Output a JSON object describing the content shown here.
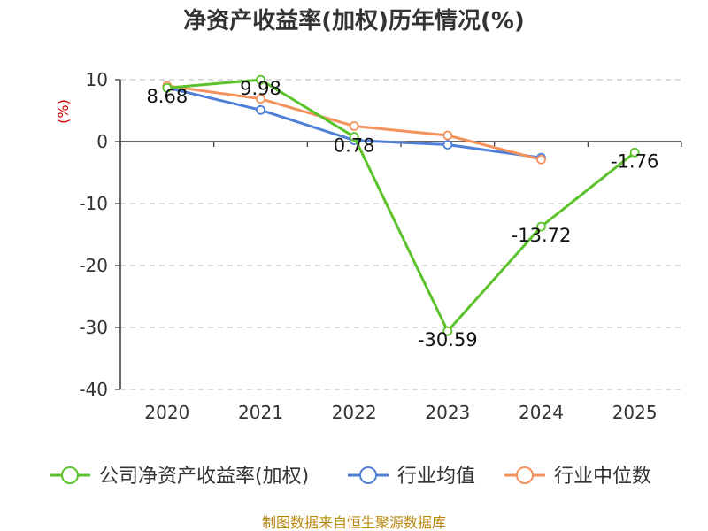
{
  "chart_data": {
    "type": "line",
    "title": "净资产收益率(加权)历年情况(%)",
    "ylabel": "(%)",
    "categories": [
      "2020",
      "2021",
      "2022",
      "2023",
      "2024",
      "2025"
    ],
    "y_ticks": [
      "10",
      "0",
      "-10",
      "-20",
      "-30",
      "-40"
    ],
    "ylim": [
      -40,
      10
    ],
    "grid": true,
    "legend_position": "bottom",
    "series": [
      {
        "name": "公司净资产收益率(加权)",
        "color": "#5cc22c",
        "values": [
          8.68,
          9.98,
          0.78,
          -30.59,
          -13.72,
          -1.76
        ],
        "labels": [
          "8.68",
          "9.98",
          "0.78",
          "-30.59",
          "-13.72",
          "-1.76"
        ]
      },
      {
        "name": "行业均值",
        "color": "#4f7fd6",
        "values": [
          8.7,
          5.1,
          0.2,
          -0.5,
          -2.6,
          null
        ]
      },
      {
        "name": "行业中位数",
        "color": "#f4925e",
        "values": [
          9.0,
          6.9,
          2.5,
          1.0,
          -2.9,
          null
        ]
      }
    ]
  },
  "source": "制图数据来自恒生聚源数据库"
}
